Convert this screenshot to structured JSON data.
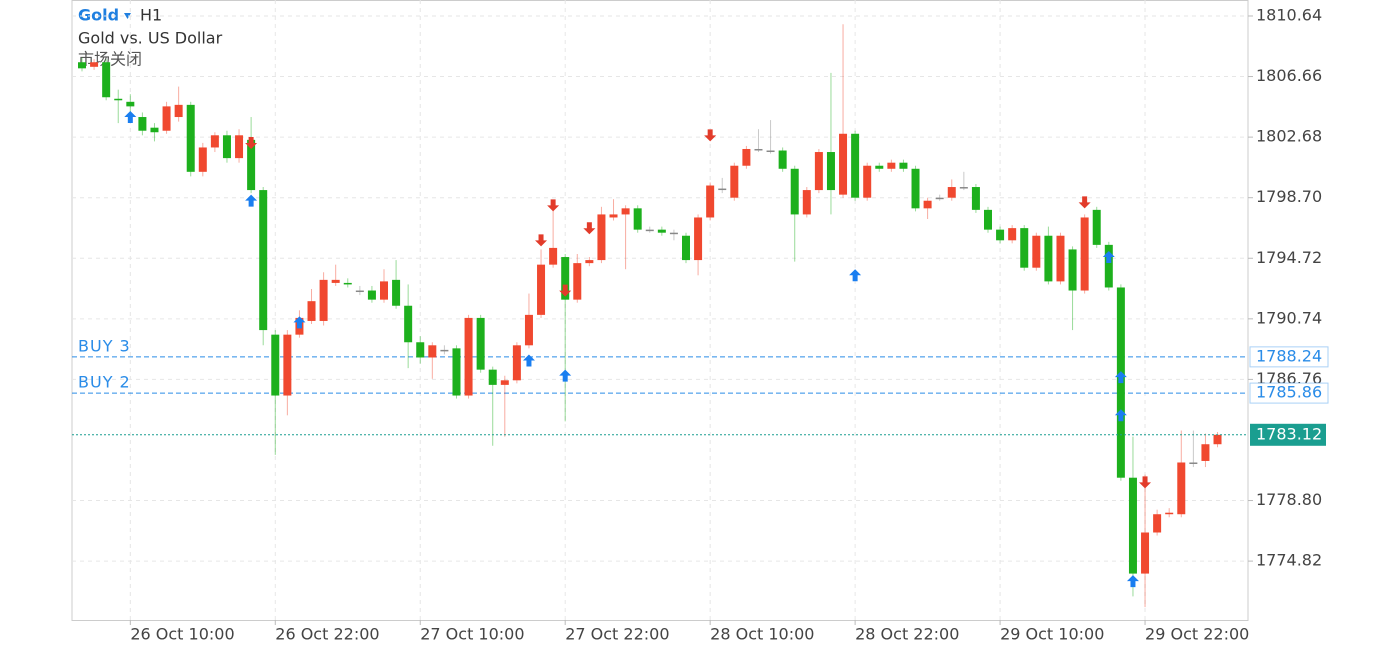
{
  "chart_data": {
    "type": "candlestick",
    "title": "Gold",
    "timeframe": "H1",
    "subtitle": "Gold vs. US Dollar",
    "status": "市场关闭",
    "categories": [
      null,
      null,
      null,
      null,
      "26 Oct 10:00",
      null,
      null,
      null,
      null,
      null,
      null,
      null,
      null,
      null,
      null,
      null,
      "26 Oct 22:00",
      null,
      null,
      null,
      null,
      null,
      null,
      null,
      null,
      null,
      null,
      null,
      "27 Oct 10:00",
      null,
      null,
      null,
      null,
      null,
      null,
      null,
      null,
      null,
      null,
      null,
      "27 Oct 22:00",
      null,
      null,
      null,
      null,
      null,
      null,
      null,
      null,
      null,
      null,
      null,
      "28 Oct 10:00",
      null,
      null,
      null,
      null,
      null,
      null,
      null,
      null,
      null,
      null,
      null,
      "28 Oct 22:00",
      null,
      null,
      null,
      null,
      null,
      null,
      null,
      null,
      null,
      null,
      null,
      "29 Oct 10:00",
      null,
      null,
      null,
      null,
      null,
      null,
      null,
      null,
      null,
      null,
      null,
      "29 Oct 22:00",
      null,
      null,
      null,
      null,
      null,
      null
    ],
    "open": [
      1807.6,
      1807.3,
      1807.6,
      1805.2,
      1805.0,
      1804.0,
      1803.3,
      1803.1,
      1804.0,
      1804.8,
      1800.4,
      1802.0,
      1802.8,
      1801.3,
      1802.5,
      1799.2,
      1789.7,
      1785.7,
      1789.7,
      1790.6,
      1790.6,
      1793.1,
      1793.1,
      1792.6,
      1792.6,
      1792.0,
      1793.3,
      1791.6,
      1789.2,
      1788.2,
      1788.7,
      1788.8,
      1785.7,
      1790.8,
      1787.4,
      1786.4,
      1786.7,
      1789.0,
      1791.0,
      1794.3,
      1794.8,
      1792.0,
      1794.4,
      1794.6,
      1797.4,
      1797.6,
      1798.0,
      1796.6,
      1796.6,
      1796.4,
      1796.2,
      1794.6,
      1797.4,
      1799.3,
      1798.7,
      1800.8,
      1801.9,
      1801.8,
      1801.8,
      1800.6,
      1797.6,
      1799.2,
      1801.7,
      1798.9,
      1802.9,
      1798.7,
      1800.8,
      1800.6,
      1801.0,
      1800.6,
      1798.0,
      1798.7,
      1798.7,
      1799.4,
      1799.4,
      1797.9,
      1796.6,
      1795.9,
      1796.7,
      1794.1,
      1796.2,
      1793.2,
      1795.3,
      1792.6,
      1797.9,
      1795.6,
      1792.8,
      1780.3,
      1774.0,
      1776.7,
      1777.9,
      1777.9,
      1781.3,
      1781.4,
      1782.5
    ],
    "high": [
      1807.9,
      1807.8,
      1807.8,
      1805.8,
      1805.5,
      1804.3,
      1803.6,
      1805.0,
      1806.0,
      1805.0,
      1802.3,
      1803.0,
      1803.1,
      1803.2,
      1804.0,
      1799.4,
      1790.0,
      1790.0,
      1791.3,
      1792.7,
      1793.8,
      1794.3,
      1793.4,
      1792.9,
      1792.9,
      1794.0,
      1794.6,
      1793.0,
      1789.6,
      1789.2,
      1789.0,
      1789.0,
      1791.0,
      1791.0,
      1787.6,
      1787.0,
      1789.2,
      1792.4,
      1795.3,
      1797.9,
      1795.0,
      1795.0,
      1794.8,
      1798.1,
      1798.6,
      1798.2,
      1798.2,
      1796.8,
      1796.8,
      1796.6,
      1796.4,
      1797.6,
      1799.7,
      1800.0,
      1801.0,
      1802.1,
      1803.2,
      1803.8,
      1802.0,
      1800.8,
      1799.4,
      1801.9,
      1806.9,
      1810.1,
      1803.1,
      1801.0,
      1801.0,
      1801.2,
      1801.2,
      1800.8,
      1798.7,
      1798.9,
      1799.9,
      1800.4,
      1799.6,
      1798.1,
      1796.8,
      1796.9,
      1796.9,
      1796.4,
      1796.8,
      1796.4,
      1795.5,
      1797.6,
      1798.1,
      1795.8,
      1793.0,
      1783.0,
      1780.5,
      1778.2,
      1778.3,
      1783.4,
      1783.4,
      1783.2,
      1783.3
    ],
    "low": [
      1807.0,
      1807.1,
      1805.1,
      1803.6,
      1803.8,
      1802.8,
      1802.4,
      1802.9,
      1803.7,
      1800.1,
      1800.1,
      1801.7,
      1801.0,
      1801.0,
      1799.0,
      1789.0,
      1781.8,
      1784.4,
      1789.5,
      1790.4,
      1790.3,
      1792.9,
      1792.8,
      1792.3,
      1791.8,
      1791.8,
      1791.4,
      1787.5,
      1787.8,
      1786.8,
      1788.4,
      1785.5,
      1785.5,
      1787.2,
      1782.4,
      1783.0,
      1786.5,
      1788.8,
      1790.8,
      1794.1,
      1784.0,
      1791.8,
      1794.2,
      1794.4,
      1797.2,
      1794.0,
      1796.4,
      1796.4,
      1796.2,
      1795.9,
      1794.4,
      1793.6,
      1797.2,
      1799.0,
      1798.5,
      1800.6,
      1801.7,
      1801.6,
      1800.4,
      1794.5,
      1797.4,
      1799.0,
      1797.6,
      1798.7,
      1798.5,
      1798.5,
      1800.4,
      1800.4,
      1800.4,
      1797.8,
      1797.3,
      1798.5,
      1798.5,
      1799.2,
      1797.7,
      1796.4,
      1795.7,
      1795.7,
      1793.9,
      1793.9,
      1793.0,
      1793.0,
      1790.0,
      1792.4,
      1795.4,
      1792.6,
      1780.1,
      1772.5,
      1771.8,
      1776.5,
      1777.7,
      1777.7,
      1781.0,
      1781.0,
      1782.3
    ],
    "close": [
      1807.2,
      1807.6,
      1805.3,
      1805.1,
      1804.7,
      1803.1,
      1803.0,
      1804.7,
      1804.8,
      1800.4,
      1802.0,
      1802.8,
      1801.3,
      1802.8,
      1799.2,
      1790.0,
      1785.7,
      1789.7,
      1790.8,
      1791.9,
      1793.3,
      1793.3,
      1793.0,
      1792.6,
      1792.0,
      1793.2,
      1791.6,
      1789.2,
      1788.2,
      1789.0,
      1788.7,
      1785.7,
      1790.8,
      1787.4,
      1786.4,
      1786.7,
      1789.0,
      1791.0,
      1794.3,
      1795.4,
      1792.0,
      1794.4,
      1794.6,
      1797.6,
      1797.6,
      1798.0,
      1796.6,
      1796.6,
      1796.4,
      1796.4,
      1794.6,
      1797.4,
      1799.5,
      1799.3,
      1800.8,
      1801.9,
      1801.9,
      1801.8,
      1800.6,
      1797.6,
      1799.2,
      1801.7,
      1799.2,
      1802.9,
      1798.7,
      1800.8,
      1800.6,
      1801.0,
      1800.6,
      1798.0,
      1798.5,
      1798.7,
      1799.4,
      1799.4,
      1797.9,
      1796.6,
      1795.9,
      1796.7,
      1794.1,
      1796.2,
      1793.2,
      1796.2,
      1792.6,
      1797.4,
      1795.6,
      1792.8,
      1780.3,
      1774.0,
      1776.7,
      1777.9,
      1778.0,
      1781.3,
      1781.3,
      1782.5,
      1783.12
    ],
    "up_color": "#f0482f",
    "down_color": "#1db01d",
    "flat_color": "#888888",
    "ylim": [
      1770.95,
      1811.69
    ],
    "yticks": [
      1774.82,
      {
        "value": 1778.8,
        "label": "1778.80"
      },
      1786.76,
      1790.74,
      1794.72,
      {
        "value": 1798.7,
        "label": "1798.70"
      },
      1802.68,
      1806.66,
      1810.64
    ],
    "grid": true,
    "price_lines": [
      {
        "label": "BUY 3",
        "value": 1788.24,
        "color": "#2a8ce8"
      },
      {
        "label": "BUY 2",
        "value": 1785.86,
        "color": "#2a8ce8"
      }
    ],
    "last_price": {
      "value": 1783.12,
      "color": "#1a9e90"
    },
    "markers": [
      {
        "index": 4,
        "price": 1804.4,
        "side": "buy"
      },
      {
        "index": 14,
        "price": 1801.9,
        "side": "sell"
      },
      {
        "index": 14,
        "price": 1798.9,
        "side": "buy"
      },
      {
        "index": 18,
        "price": 1790.9,
        "side": "buy"
      },
      {
        "index": 37,
        "price": 1788.4,
        "side": "buy"
      },
      {
        "index": 39,
        "price": 1797.8,
        "side": "sell"
      },
      {
        "index": 38,
        "price": 1795.5,
        "side": "sell"
      },
      {
        "index": 40,
        "price": 1792.2,
        "side": "sell"
      },
      {
        "index": 40,
        "price": 1787.4,
        "side": "buy"
      },
      {
        "index": 42,
        "price": 1796.3,
        "side": "sell"
      },
      {
        "index": 52,
        "price": 1802.4,
        "side": "sell"
      },
      {
        "index": 64,
        "price": 1794.0,
        "side": "buy"
      },
      {
        "index": 83,
        "price": 1798.0,
        "side": "sell"
      },
      {
        "index": 85,
        "price": 1795.2,
        "side": "buy"
      },
      {
        "index": 86,
        "price": 1787.3,
        "side": "buy"
      },
      {
        "index": 86,
        "price": 1784.8,
        "side": "buy"
      },
      {
        "index": 88,
        "price": 1779.6,
        "side": "sell"
      },
      {
        "index": 87,
        "price": 1773.9,
        "side": "buy"
      }
    ]
  }
}
